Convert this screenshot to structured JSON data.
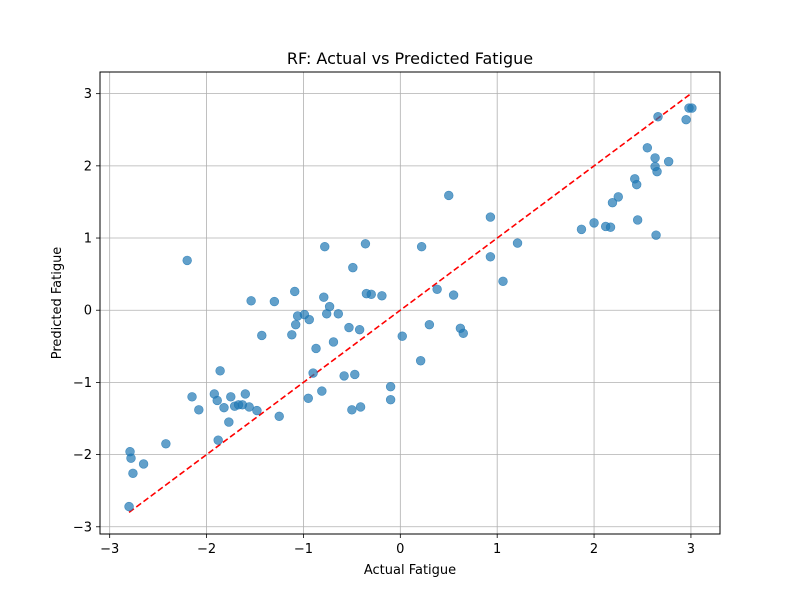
{
  "chart_data": {
    "type": "scatter",
    "title": "RF: Actual vs Predicted Fatigue",
    "xlabel": "Actual Fatigue",
    "ylabel": "Predicted Fatigue",
    "xlim": [
      -3.1,
      3.3
    ],
    "ylim": [
      -3.1,
      3.3
    ],
    "xticks": [
      -3,
      -2,
      -1,
      0,
      1,
      2,
      3
    ],
    "yticks": [
      -3,
      -2,
      -1,
      0,
      1,
      2,
      3
    ],
    "xtick_labels": [
      "−3",
      "−2",
      "−1",
      "0",
      "1",
      "2",
      "3"
    ],
    "ytick_labels": [
      "−3",
      "−2",
      "−1",
      "0",
      "1",
      "2",
      "3"
    ],
    "grid": true,
    "point_color": "#1f77b4",
    "line_color": "#ff0000",
    "identity_line": {
      "x": [
        -2.8,
        3.0
      ],
      "y": [
        -2.8,
        3.0
      ]
    },
    "points": [
      [
        -2.8,
        -2.72
      ],
      [
        -2.79,
        -1.96
      ],
      [
        -2.78,
        -2.05
      ],
      [
        -2.76,
        -2.26
      ],
      [
        -2.65,
        -2.13
      ],
      [
        -2.42,
        -1.85
      ],
      [
        -2.2,
        0.69
      ],
      [
        -2.15,
        -1.2
      ],
      [
        -2.08,
        -1.38
      ],
      [
        -1.92,
        -1.16
      ],
      [
        -1.89,
        -1.25
      ],
      [
        -1.88,
        -1.8
      ],
      [
        -1.86,
        -0.84
      ],
      [
        -1.82,
        -1.35
      ],
      [
        -1.77,
        -1.55
      ],
      [
        -1.75,
        -1.2
      ],
      [
        -1.71,
        -1.33
      ],
      [
        -1.67,
        -1.31
      ],
      [
        -1.63,
        -1.31
      ],
      [
        -1.6,
        -1.16
      ],
      [
        -1.56,
        -1.34
      ],
      [
        -1.54,
        0.13
      ],
      [
        -1.48,
        -1.39
      ],
      [
        -1.43,
        -0.35
      ],
      [
        -1.3,
        0.12
      ],
      [
        -1.25,
        -1.47
      ],
      [
        -1.12,
        -0.34
      ],
      [
        -1.09,
        0.26
      ],
      [
        -1.08,
        -0.2
      ],
      [
        -1.06,
        -0.08
      ],
      [
        -0.99,
        -0.06
      ],
      [
        -0.95,
        -1.22
      ],
      [
        -0.94,
        -0.13
      ],
      [
        -0.9,
        -0.87
      ],
      [
        -0.87,
        -0.53
      ],
      [
        -0.81,
        -1.12
      ],
      [
        -0.79,
        0.18
      ],
      [
        -0.78,
        0.88
      ],
      [
        -0.76,
        -0.05
      ],
      [
        -0.73,
        0.05
      ],
      [
        -0.69,
        -0.44
      ],
      [
        -0.64,
        -0.05
      ],
      [
        -0.58,
        -0.91
      ],
      [
        -0.53,
        -0.24
      ],
      [
        -0.5,
        -1.38
      ],
      [
        -0.49,
        0.59
      ],
      [
        -0.47,
        -0.89
      ],
      [
        -0.42,
        -0.27
      ],
      [
        -0.41,
        -1.34
      ],
      [
        -0.36,
        0.92
      ],
      [
        -0.35,
        0.23
      ],
      [
        -0.3,
        0.22
      ],
      [
        -0.19,
        0.2
      ],
      [
        -0.1,
        -1.06
      ],
      [
        -0.1,
        -1.24
      ],
      [
        0.02,
        -0.36
      ],
      [
        0.21,
        -0.7
      ],
      [
        0.22,
        0.88
      ],
      [
        0.3,
        -0.2
      ],
      [
        0.38,
        0.29
      ],
      [
        0.5,
        1.59
      ],
      [
        0.55,
        0.21
      ],
      [
        0.62,
        -0.25
      ],
      [
        0.65,
        -0.32
      ],
      [
        0.93,
        1.29
      ],
      [
        0.93,
        0.74
      ],
      [
        1.06,
        0.4
      ],
      [
        1.21,
        0.93
      ],
      [
        1.87,
        1.12
      ],
      [
        2.0,
        1.21
      ],
      [
        2.12,
        1.16
      ],
      [
        2.17,
        1.15
      ],
      [
        2.19,
        1.49
      ],
      [
        2.25,
        1.57
      ],
      [
        2.42,
        1.82
      ],
      [
        2.44,
        1.74
      ],
      [
        2.45,
        1.25
      ],
      [
        2.55,
        2.25
      ],
      [
        2.63,
        2.11
      ],
      [
        2.63,
        1.99
      ],
      [
        2.64,
        1.04
      ],
      [
        2.65,
        1.92
      ],
      [
        2.66,
        2.68
      ],
      [
        2.77,
        2.06
      ],
      [
        2.95,
        2.64
      ],
      [
        2.98,
        2.8
      ],
      [
        3.01,
        2.8
      ]
    ]
  }
}
